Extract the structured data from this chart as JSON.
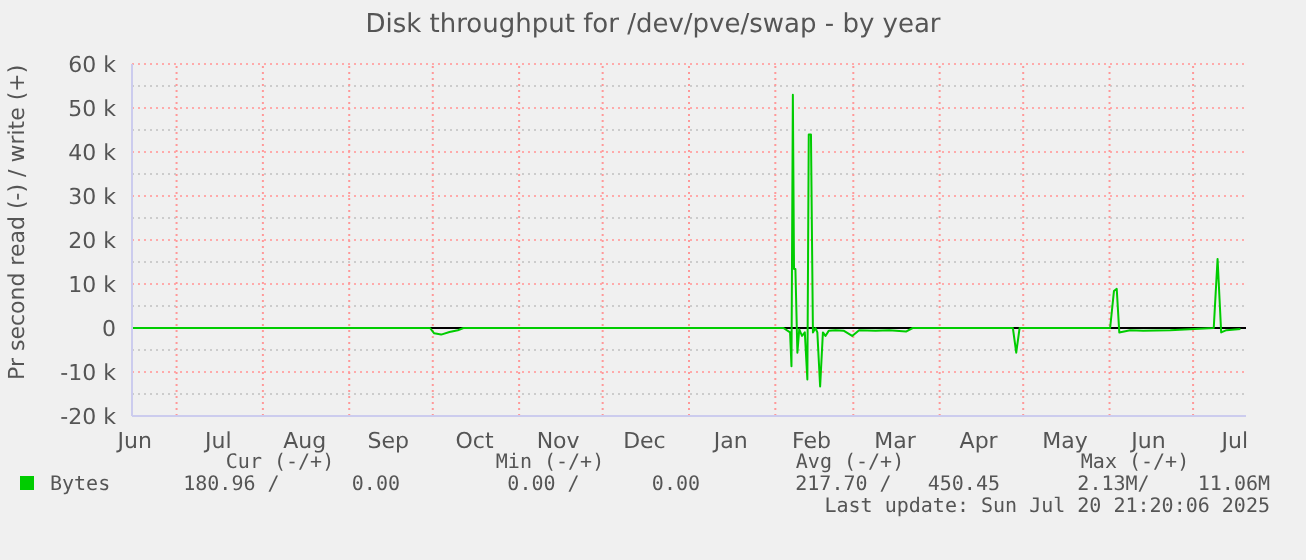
{
  "chart_data": {
    "type": "line",
    "title": "Disk throughput for /dev/pve/swap - by year",
    "ylabel": "Pr second read (-) / write (+)",
    "x": [
      "2024-06-15",
      "2024-09-30",
      "2024-10-01T12:00",
      "2024-10-04",
      "2024-10-07",
      "2024-10-10",
      "2024-10-12",
      "2025-02-03T22:00",
      "2025-02-06T07:00",
      "2025-02-06T19:00",
      "2025-02-07T07:00",
      "2025-02-07T17:00",
      "2025-02-08T05:00",
      "2025-02-08T22:00",
      "2025-02-09T14:00",
      "2025-02-10T14:00",
      "2025-02-11T14:00",
      "2025-02-12T12:00",
      "2025-02-13T00:00",
      "2025-02-13T19:00",
      "2025-02-14T12:00",
      "2025-02-15T10:00",
      "2025-02-16T02:00",
      "2025-02-17T02:00",
      "2025-02-18T02:00",
      "2025-02-19T00:00",
      "2025-02-20T05:00",
      "2025-02-22T14:00",
      "2025-02-25T12:00",
      "2025-02-28T14:00",
      "2025-03-03T02:00",
      "2025-03-09T00:00",
      "2025-03-13T22:00",
      "2025-03-19T22:00",
      "2025-03-22T07:00",
      "2025-04-27T07:00",
      "2025-04-28T12:00",
      "2025-04-29T17:00",
      "2025-06-01T05:00",
      "2025-06-02T14:00",
      "2025-06-03T14:00",
      "2025-06-04T12:00",
      "2025-06-08T10:00",
      "2025-06-13T02:00",
      "2025-06-22T19:00",
      "2025-07-08T10:00",
      "2025-07-09T19:00",
      "2025-07-11T02:00",
      "2025-07-13T00:00",
      "2025-07-18T00:00"
    ],
    "series": [
      {
        "name": "Bytes",
        "color": "#00cc00",
        "values": [
          0,
          0,
          -1200,
          -1500,
          -900,
          -500,
          0,
          0,
          -1000,
          -8700,
          53000,
          13400,
          13400,
          -5600,
          -300,
          -1800,
          -1000,
          -11700,
          44000,
          44000,
          -1000,
          0,
          -1000,
          -13300,
          -1000,
          -1800,
          -600,
          -500,
          -600,
          -1800,
          -500,
          -600,
          -500,
          -800,
          0,
          0,
          -5600,
          0,
          0,
          8400,
          8900,
          -1000,
          -500,
          -600,
          -500,
          0,
          15700,
          -1000,
          -500,
          -200
        ]
      }
    ],
    "xlim": [
      "2024-06-15",
      "2025-07-20"
    ],
    "xticks": [
      {
        "value": "2024-06-16",
        "label": "Jun"
      },
      {
        "value": "2024-07-16",
        "label": "Jul"
      },
      {
        "value": "2024-08-16",
        "label": "Aug"
      },
      {
        "value": "2024-09-15",
        "label": "Sep"
      },
      {
        "value": "2024-10-16",
        "label": "Oct"
      },
      {
        "value": "2024-11-15",
        "label": "Nov"
      },
      {
        "value": "2024-12-16",
        "label": "Dec"
      },
      {
        "value": "2025-01-16",
        "label": "Jan"
      },
      {
        "value": "2025-02-14",
        "label": "Feb"
      },
      {
        "value": "2025-03-16",
        "label": "Mar"
      },
      {
        "value": "2025-04-15",
        "label": "Apr"
      },
      {
        "value": "2025-05-16",
        "label": "May"
      },
      {
        "value": "2025-06-15",
        "label": "Jun"
      },
      {
        "value": "2025-07-16",
        "label": "Jul"
      }
    ],
    "ylim": [
      -20000,
      60000
    ],
    "yticks": [
      {
        "value": -20000,
        "label": "-20 k"
      },
      {
        "value": -15000,
        "label": null
      },
      {
        "value": -10000,
        "label": "-10 k"
      },
      {
        "value": -5000,
        "label": null
      },
      0,
      {
        "value": 5000,
        "label": null
      },
      {
        "value": 10000,
        "label": "10 k"
      },
      {
        "value": 15000,
        "label": null
      },
      {
        "value": 20000,
        "label": "20 k"
      },
      {
        "value": 25000,
        "label": null
      },
      {
        "value": 30000,
        "label": "30 k"
      },
      {
        "value": 35000,
        "label": null
      },
      {
        "value": 40000,
        "label": "40 k"
      },
      {
        "value": 45000,
        "label": null
      },
      {
        "value": 50000,
        "label": "50 k"
      },
      {
        "value": 55000,
        "label": null
      },
      {
        "value": 60000,
        "label": "60 k"
      }
    ],
    "grid": "y",
    "ref_lines": [
      {
        "axis": "y",
        "value": 0,
        "label": null,
        "color": "#000000",
        "line_style": "solid"
      },
      {
        "axis": "x",
        "value": "2024-07-01",
        "label": null,
        "color": "#ff9999",
        "line_style": "dotted"
      },
      {
        "axis": "x",
        "value": "2024-08-01",
        "label": null,
        "color": "#ff9999",
        "line_style": "dotted"
      },
      {
        "axis": "x",
        "value": "2024-09-01",
        "label": null,
        "color": "#ff9999",
        "line_style": "dotted"
      },
      {
        "axis": "x",
        "value": "2024-10-01",
        "label": null,
        "color": "#ff9999",
        "line_style": "dotted"
      },
      {
        "axis": "x",
        "value": "2024-11-01",
        "label": null,
        "color": "#ff9999",
        "line_style": "dotted"
      },
      {
        "axis": "x",
        "value": "2024-12-01",
        "label": null,
        "color": "#ff9999",
        "line_style": "dotted"
      },
      {
        "axis": "x",
        "value": "2025-01-01",
        "label": null,
        "color": "#ff9999",
        "line_style": "dotted"
      },
      {
        "axis": "x",
        "value": "2025-02-01",
        "label": null,
        "color": "#ff9999",
        "line_style": "dotted"
      },
      {
        "axis": "x",
        "value": "2025-03-01",
        "label": null,
        "color": "#ff9999",
        "line_style": "dotted"
      },
      {
        "axis": "x",
        "value": "2025-04-01",
        "label": null,
        "color": "#ff9999",
        "line_style": "dotted"
      },
      {
        "axis": "x",
        "value": "2025-05-01",
        "label": null,
        "color": "#ff9999",
        "line_style": "dotted"
      },
      {
        "axis": "x",
        "value": "2025-06-01",
        "label": null,
        "color": "#ff9999",
        "line_style": "dotted"
      },
      {
        "axis": "x",
        "value": "2025-07-01",
        "label": null,
        "color": "#ff9999",
        "line_style": "dotted"
      }
    ],
    "legend": "bottom",
    "marker": "none",
    "line_style": "solid",
    "annotations": [
      "Cur (-/+)",
      "Min (-/+)",
      "Avg (-/+)",
      "Max (-/+)",
      "180.96 /      0.00",
      "0.00 /      0.00",
      "217.70 /   450.45",
      "2.13M/    11.06M",
      "Last update: Sun Jul 20 21:20:06 2025"
    ]
  }
}
